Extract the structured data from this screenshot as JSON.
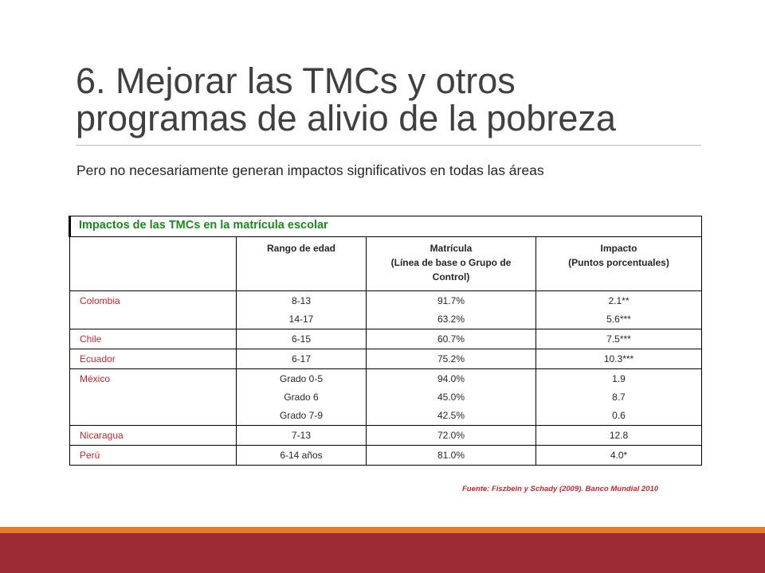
{
  "slide": {
    "title_line1": "6. Mejorar las TMCs y otros",
    "title_line2": "programas de alivio de la pobreza",
    "subtitle": "Pero no necesariamente generan impactos significativos en todas las áreas"
  },
  "table": {
    "caption": "Impactos de las TMCs en la matrícula escolar",
    "headers": {
      "age": "Rango de edad",
      "enrollment_1": "Matrícula",
      "enrollment_2": "(Línea de base o Grupo de Control)",
      "impact_1": "Impacto",
      "impact_2": "(Puntos porcentuales)"
    },
    "rows": [
      {
        "country": "Colombia",
        "age": [
          "8-13",
          "14-17"
        ],
        "enrollment": [
          "91.7%",
          "63.2%"
        ],
        "impact": [
          "2.1**",
          "5.6***"
        ]
      },
      {
        "country": "Chile",
        "age": [
          "6-15"
        ],
        "enrollment": [
          "60.7%"
        ],
        "impact": [
          "7.5***"
        ]
      },
      {
        "country": "Ecuador",
        "age": [
          "6-17"
        ],
        "enrollment": [
          "75.2%"
        ],
        "impact": [
          "10.3***"
        ]
      },
      {
        "country": "México",
        "age": [
          "Grado 0-5",
          "Grado 6",
          "Grado 7-9"
        ],
        "enrollment": [
          "94.0%",
          "45.0%",
          "42.5%"
        ],
        "impact": [
          "1.9",
          "8.7",
          "0.6"
        ]
      },
      {
        "country": "Nicaragua",
        "age": [
          "7-13"
        ],
        "enrollment": [
          "72.0%"
        ],
        "impact": [
          "12.8"
        ]
      },
      {
        "country": "Perú",
        "age": [
          "6-14 años"
        ],
        "enrollment": [
          "81.0%"
        ],
        "impact": [
          "4.0*"
        ]
      }
    ],
    "source": "Fuente: Fiszbein y Schady (2009). Banco Mundial 2010"
  },
  "colors": {
    "accent_red": "#9d2a35",
    "accent_orange": "#e87b2a",
    "caption_green": "#1a8a1a",
    "country_red": "#c0272d"
  }
}
